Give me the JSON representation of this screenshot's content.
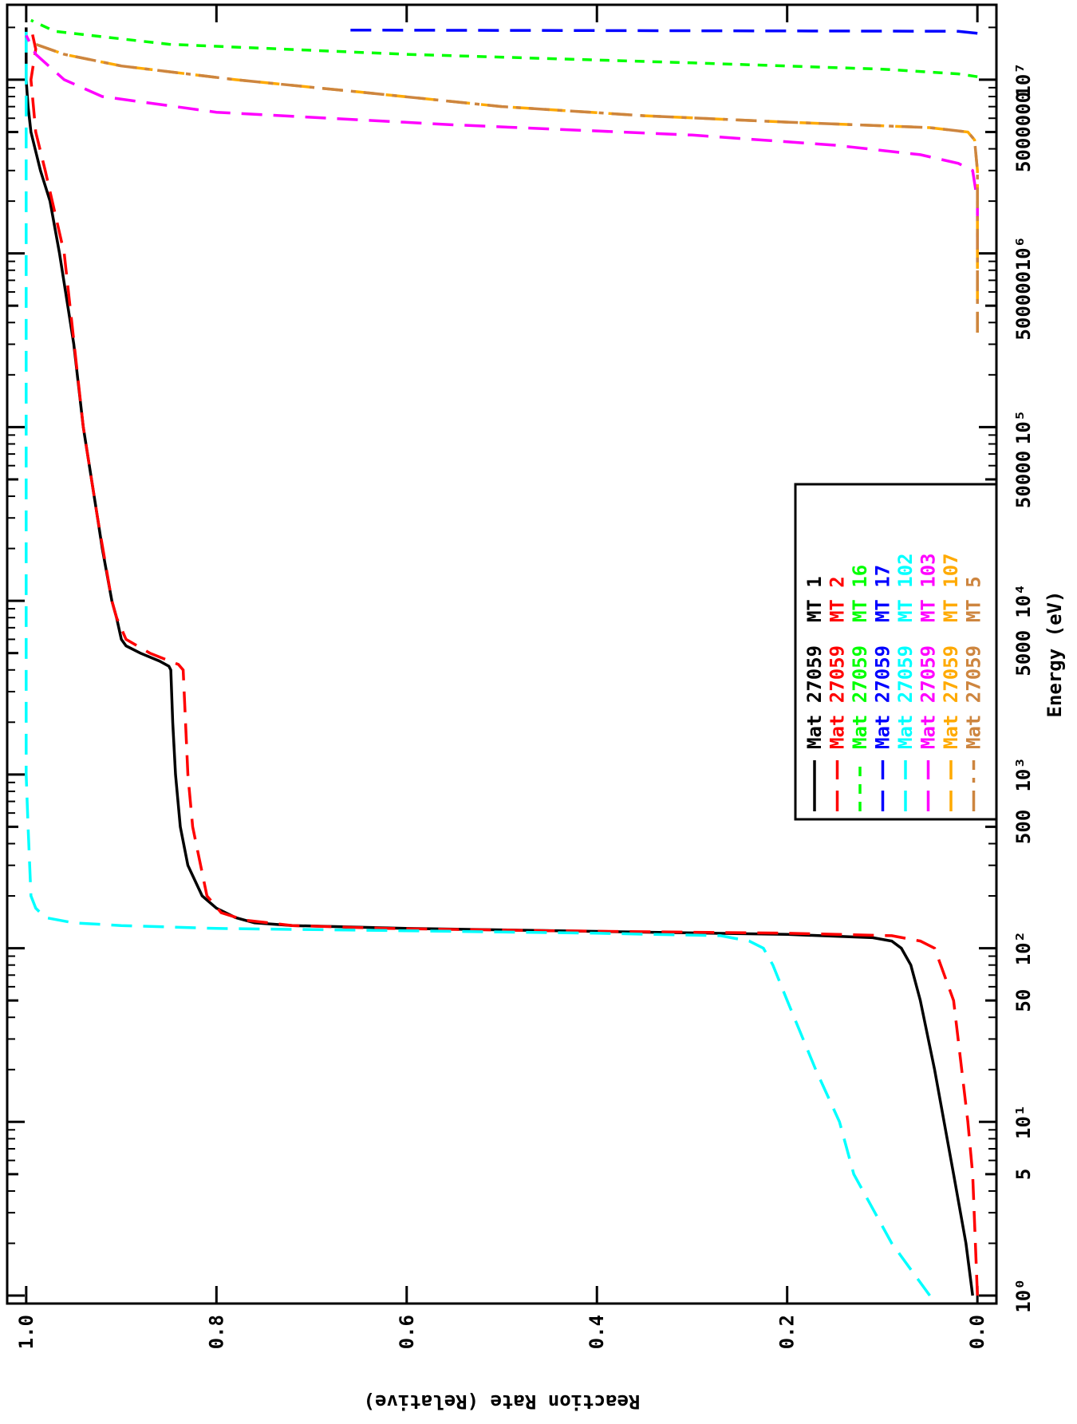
{
  "chart_data": {
    "type": "line",
    "xlabel": "Energy (eV)",
    "ylabel": "Reaction Rate (Relative)",
    "xscale": "log",
    "xlim": [
      0.9,
      27000000
    ],
    "ylim": [
      -0.02,
      1.02
    ],
    "xticks": [
      {
        "value": 1,
        "label": "10⁰"
      },
      5,
      {
        "value": 10,
        "label": "10¹"
      },
      50,
      {
        "value": 100,
        "label": "10²"
      },
      500,
      {
        "value": 1000,
        "label": "10³"
      },
      5000,
      {
        "value": 10000,
        "label": "10⁴"
      },
      50000,
      {
        "value": 100000,
        "label": "10⁵"
      },
      500000,
      {
        "value": 1000000,
        "label": "10⁶"
      },
      5000000,
      {
        "value": 10000000,
        "label": "10⁷"
      }
    ],
    "xminorticks": [
      2,
      3,
      4,
      6,
      7,
      8,
      9,
      20,
      30,
      40,
      60,
      70,
      80,
      90,
      200,
      300,
      400,
      600,
      700,
      800,
      900,
      2000,
      3000,
      4000,
      6000,
      7000,
      8000,
      9000,
      20000,
      30000,
      40000,
      60000,
      70000,
      80000,
      90000,
      200000,
      300000,
      400000,
      600000,
      700000,
      800000,
      900000,
      2000000,
      3000000,
      4000000,
      6000000,
      7000000,
      8000000,
      9000000,
      20000000
    ],
    "yticks": [
      {
        "value": 0,
        "label": "0.0"
      },
      {
        "value": 0.2,
        "label": "0.2"
      },
      {
        "value": 0.4,
        "label": "0.4"
      },
      {
        "value": 0.6,
        "label": "0.6"
      },
      {
        "value": 0.8,
        "label": "0.8"
      },
      {
        "value": 1,
        "label": "1.0"
      }
    ],
    "legend": "lower-right",
    "series": [
      {
        "name": "Mat 27059  MT 1",
        "color": "#000000",
        "dash": "solid",
        "x": [
          1,
          2,
          5,
          10,
          20,
          50,
          80,
          100,
          110,
          115,
          120,
          125,
          130,
          135,
          140,
          150,
          170,
          200,
          300,
          500,
          1000,
          2000,
          4000,
          4200,
          4500,
          5000,
          5500,
          6000,
          8000,
          10000,
          20000,
          30000,
          100000,
          300000,
          1000000,
          2000000,
          3000000,
          5000000,
          7000000,
          10000000,
          20000000
        ],
        "values": [
          0.005,
          0.012,
          0.025,
          0.035,
          0.045,
          0.06,
          0.07,
          0.08,
          0.09,
          0.11,
          0.2,
          0.4,
          0.6,
          0.72,
          0.76,
          0.78,
          0.8,
          0.815,
          0.83,
          0.838,
          0.843,
          0.846,
          0.848,
          0.85,
          0.86,
          0.88,
          0.895,
          0.9,
          0.905,
          0.91,
          0.92,
          0.925,
          0.94,
          0.95,
          0.965,
          0.975,
          0.985,
          0.995,
          0.998,
          1.0,
          1.0
        ]
      },
      {
        "name": "Mat 27059  MT 2",
        "color": "#ff0000",
        "dash": "long",
        "x": [
          1,
          5,
          10,
          50,
          100,
          110,
          118,
          122,
          126,
          130,
          135,
          145,
          160,
          200,
          500,
          1000,
          4000,
          4300,
          5000,
          6000,
          8000,
          10000,
          30000,
          100000,
          1000000,
          3000000,
          5000000,
          10000000,
          15000000,
          20000000
        ],
        "values": [
          0.0,
          0.005,
          0.01,
          0.025,
          0.045,
          0.06,
          0.09,
          0.2,
          0.45,
          0.62,
          0.72,
          0.77,
          0.795,
          0.81,
          0.825,
          0.83,
          0.835,
          0.84,
          0.87,
          0.895,
          0.905,
          0.91,
          0.925,
          0.94,
          0.96,
          0.98,
          0.99,
          0.995,
          0.99,
          0.995
        ]
      },
      {
        "name": "Mat 27059  MT 16",
        "color": "#00ff00",
        "dash": "short",
        "x": [
          10400000,
          10800000,
          11500000,
          12500000,
          14000000,
          16000000,
          19000000,
          22000000
        ],
        "values": [
          0,
          0.02,
          0.1,
          0.3,
          0.6,
          0.85,
          0.97,
          0.995
        ]
      },
      {
        "name": "Mat 27059  MT 17",
        "color": "#0000ff",
        "dash": "long",
        "x": [
          18500000,
          19000000,
          19300000
        ],
        "values": [
          0,
          0.02,
          0.665
        ]
      },
      {
        "name": "Mat 27059  MT 102",
        "color": "#00ffff",
        "dash": "long",
        "x": [
          1,
          2,
          5,
          10,
          20,
          50,
          80,
          100,
          110,
          118,
          122,
          126,
          130,
          135,
          140,
          150,
          170,
          200,
          500,
          1000,
          5000,
          100000,
          1000000,
          10000000,
          20000000
        ],
        "values": [
          0.05,
          0.09,
          0.13,
          0.145,
          0.17,
          0.2,
          0.215,
          0.225,
          0.24,
          0.27,
          0.4,
          0.6,
          0.8,
          0.9,
          0.95,
          0.98,
          0.99,
          0.995,
          0.998,
          1.0,
          1.0,
          1.0,
          1.0,
          1.0,
          1.0
        ]
      },
      {
        "name": "Mat 27059  MT 103",
        "color": "#ff00ff",
        "dash": "long",
        "x": [
          1000000,
          2000000,
          3000000,
          3300000,
          3700000,
          4200000,
          4800000,
          5500000,
          6500000,
          8000000,
          10000000,
          14000000,
          18000000
        ],
        "values": [
          0,
          0,
          0.005,
          0.02,
          0.06,
          0.15,
          0.3,
          0.55,
          0.8,
          0.92,
          0.96,
          0.99,
          1.0
        ]
      },
      {
        "name": "Mat 27059  MT 107",
        "color": "#ffaa00",
        "dash": "long",
        "x": [
          350000,
          1000000,
          3000000,
          4500000,
          5000000,
          5300000,
          5700000,
          6200000,
          7000000,
          8500000,
          10000000,
          12000000,
          14000000,
          16000000
        ],
        "values": [
          0,
          0,
          0,
          0.003,
          0.01,
          0.05,
          0.2,
          0.35,
          0.5,
          0.65,
          0.78,
          0.9,
          0.96,
          0.99
        ]
      },
      {
        "name": "Mat 27059  MT 5",
        "color": "#cd853f",
        "dash": "dashdot",
        "x": [
          350000,
          1000000,
          3000000,
          4500000,
          5000000,
          5300000,
          5700000,
          6200000,
          7000000,
          8500000,
          10000000,
          12000000,
          14000000,
          16000000
        ],
        "values": [
          0,
          0,
          0,
          0.003,
          0.01,
          0.05,
          0.2,
          0.35,
          0.5,
          0.65,
          0.78,
          0.9,
          0.96,
          0.99
        ]
      }
    ]
  }
}
